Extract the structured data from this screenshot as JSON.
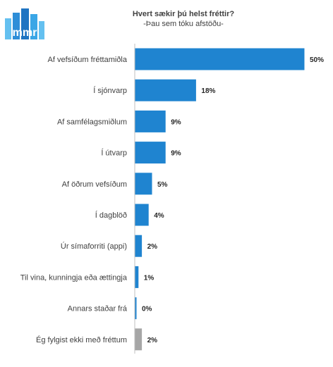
{
  "header": {
    "logo_text": "mmr",
    "title": "Hvert sækir þú helst fréttir?",
    "subtitle": "-Þau sem tóku afstöðu-"
  },
  "colors": {
    "bar_primary": "#1F84D0",
    "bar_other": "#A6A6A6",
    "axis": "#BFBFBF",
    "logo_light": "#64C0F0",
    "logo_dark": "#2E8ED8"
  },
  "chart_data": {
    "type": "bar",
    "orientation": "horizontal",
    "categories": [
      "Af vefsíðum fréttamiðla",
      "Í sjónvarp",
      "Af samfélagsmiðlum",
      "Í útvarp",
      "Af öðrum vefsíðum",
      "Í dagblöð",
      "Úr símaforriti (appi)",
      "Til vina, kunningja eða ættingja",
      "Annars staðar frá",
      "Ég fylgist ekki með fréttum"
    ],
    "values": [
      50,
      18,
      9,
      9,
      5,
      4,
      2,
      1,
      0,
      2
    ],
    "value_labels": [
      "50%",
      "18%",
      "9%",
      "9%",
      "5%",
      "4%",
      "2%",
      "1%",
      "0%",
      "2%"
    ],
    "bar_colors": [
      "#1F84D0",
      "#1F84D0",
      "#1F84D0",
      "#1F84D0",
      "#1F84D0",
      "#1F84D0",
      "#1F84D0",
      "#1F84D0",
      "#1F84D0",
      "#A6A6A6"
    ],
    "xlim": [
      0,
      50
    ],
    "unit": "%",
    "grid": false,
    "legend": "none"
  }
}
